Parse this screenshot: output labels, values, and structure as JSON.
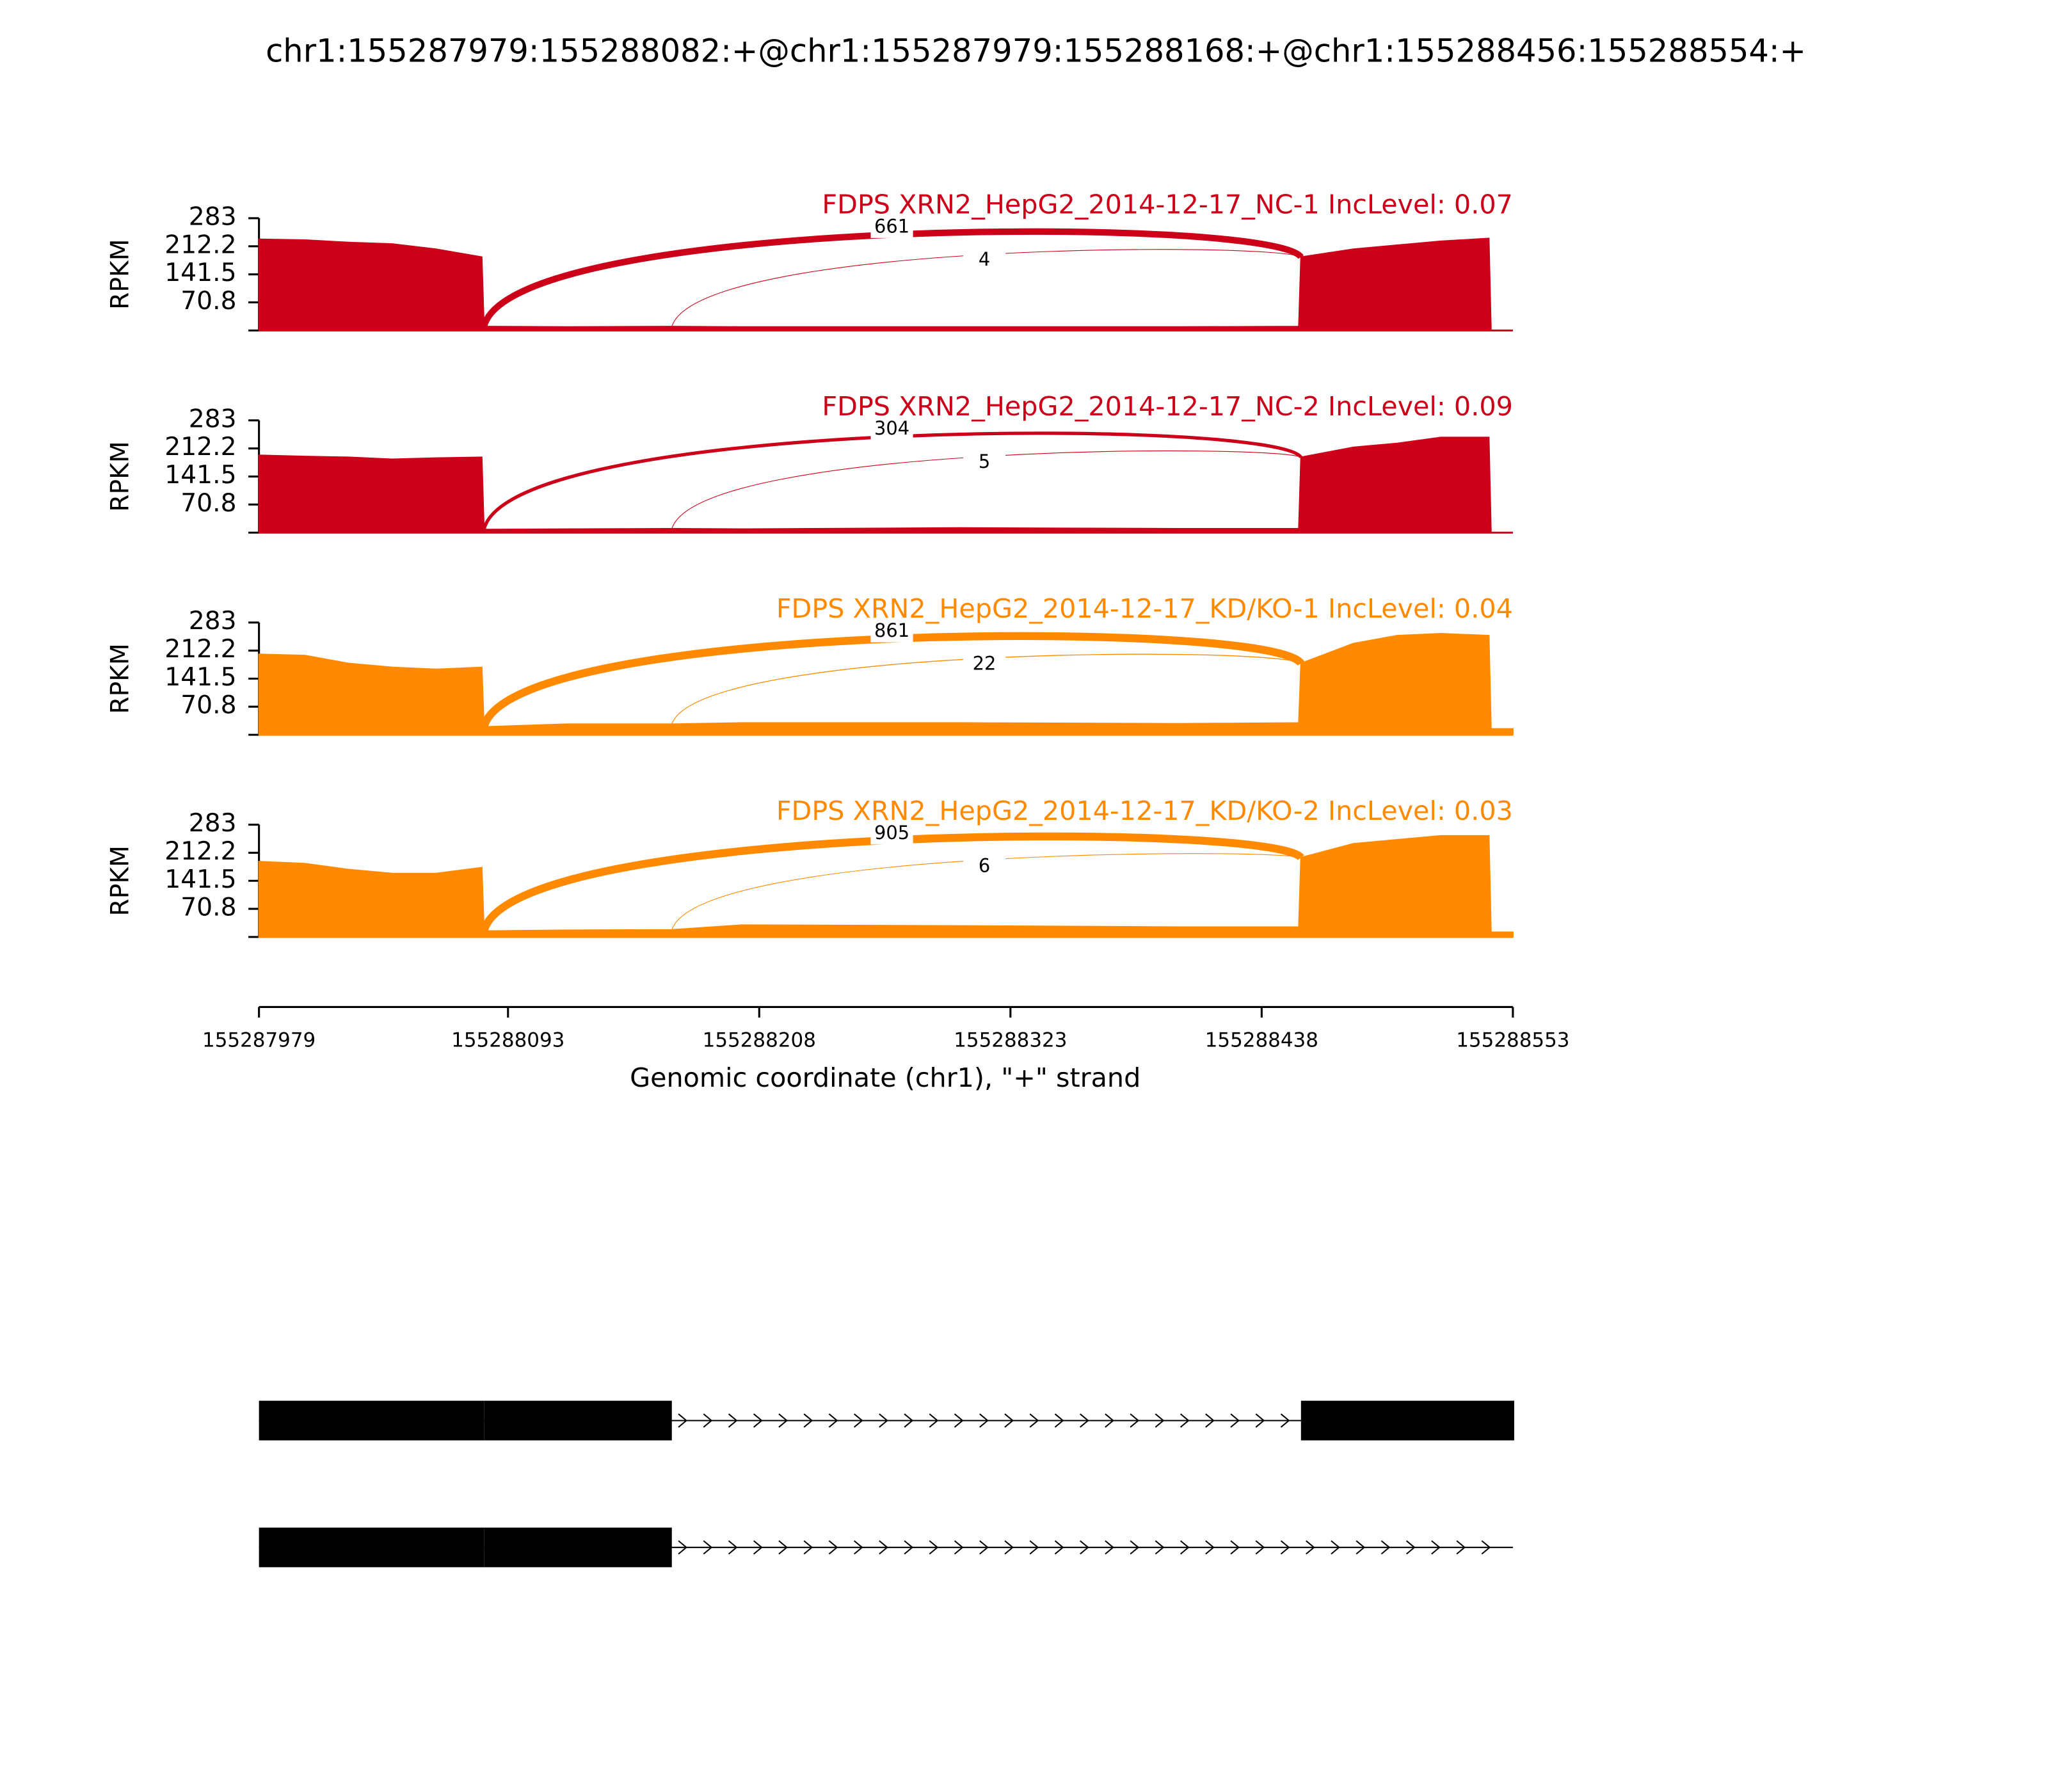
{
  "title": "chr1:155287979:155288082:+@chr1:155287979:155288168:+@chr1:155288456:155288554:+",
  "x_axis": {
    "xlabel": "Genomic coordinate (chr1), \"+\" strand",
    "xlim": [
      155287979,
      155288553
    ],
    "xticks": [
      155287979,
      155288093,
      155288208,
      155288323,
      155288438,
      155288553
    ]
  },
  "chart_data": [
    {
      "type": "sashimi",
      "title": "FDPS XRN2_HepG2_2014-12-17_NC-1 IncLevel: 0.07",
      "ylabel": "RPKM",
      "color": "#cc0018",
      "ylim": [
        0,
        283
      ],
      "yticks": [
        70.8,
        141.5,
        212.2,
        283
      ],
      "x": [
        155287979,
        155288000,
        155288020,
        155288040,
        155288060,
        155288081,
        155288082,
        155288120,
        155288168,
        155288200,
        155288300,
        155288400,
        155288455,
        155288456,
        155288480,
        155288500,
        155288520,
        155288542,
        155288543,
        155288553
      ],
      "values": [
        230,
        228,
        222,
        218,
        205,
        185,
        10,
        9,
        10,
        9,
        9,
        9,
        10,
        185,
        205,
        215,
        225,
        232,
        0,
        0
      ],
      "junctions": [
        {
          "start": 155288082,
          "end": 155288456,
          "count": 661
        },
        {
          "start": 155288168,
          "end": 155288456,
          "count": 4
        }
      ]
    },
    {
      "type": "sashimi",
      "title": "FDPS XRN2_HepG2_2014-12-17_NC-2 IncLevel: 0.09",
      "ylabel": "RPKM",
      "color": "#cc0018",
      "ylim": [
        0,
        283
      ],
      "yticks": [
        70.8,
        141.5,
        212.2,
        283
      ],
      "x": [
        155287979,
        155288000,
        155288020,
        155288040,
        155288060,
        155288081,
        155288082,
        155288120,
        155288168,
        155288200,
        155288300,
        155288400,
        155288455,
        155288456,
        155288480,
        155288500,
        155288520,
        155288542,
        155288543,
        155288553
      ],
      "values": [
        195,
        192,
        190,
        185,
        188,
        190,
        8,
        9,
        10,
        9,
        12,
        10,
        10,
        190,
        215,
        225,
        240,
        240,
        0,
        0
      ],
      "junctions": [
        {
          "start": 155288082,
          "end": 155288456,
          "count": 304
        },
        {
          "start": 155288168,
          "end": 155288456,
          "count": 5
        }
      ]
    },
    {
      "type": "sashimi",
      "title": "FDPS XRN2_HepG2_2014-12-17_KD/KO-1 IncLevel: 0.04",
      "ylabel": "RPKM",
      "color": "#ff8a00",
      "ylim": [
        0,
        283
      ],
      "yticks": [
        70.8,
        141.5,
        212.2,
        283
      ],
      "x": [
        155287979,
        155288000,
        155288020,
        155288040,
        155288060,
        155288081,
        155288082,
        155288120,
        155288168,
        155288200,
        155288300,
        155288400,
        155288455,
        155288456,
        155288480,
        155288500,
        155288520,
        155288542,
        155288543,
        155288553
      ],
      "values": [
        203,
        200,
        180,
        170,
        165,
        170,
        20,
        27,
        27,
        30,
        30,
        28,
        30,
        180,
        230,
        250,
        255,
        250,
        15,
        15
      ],
      "junctions": [
        {
          "start": 155288082,
          "end": 155288456,
          "count": 861
        },
        {
          "start": 155288168,
          "end": 155288456,
          "count": 22
        }
      ]
    },
    {
      "type": "sashimi",
      "title": "FDPS XRN2_HepG2_2014-12-17_KD/KO-2 IncLevel: 0.03",
      "ylabel": "RPKM",
      "color": "#ff8a00",
      "ylim": [
        0,
        283
      ],
      "yticks": [
        70.8,
        141.5,
        212.2,
        283
      ],
      "x": [
        155287979,
        155288000,
        155288020,
        155288040,
        155288060,
        155288081,
        155288082,
        155288120,
        155288168,
        155288200,
        155288300,
        155288400,
        155288455,
        155288456,
        155288480,
        155288500,
        155288520,
        155288542,
        155288543,
        155288553
      ],
      "values": [
        190,
        185,
        170,
        160,
        160,
        175,
        15,
        17,
        18,
        30,
        28,
        25,
        25,
        200,
        235,
        245,
        255,
        255,
        12,
        12
      ],
      "junctions": [
        {
          "start": 155288082,
          "end": 155288456,
          "count": 905
        },
        {
          "start": 155288168,
          "end": 155288456,
          "count": 6
        }
      ]
    }
  ],
  "transcripts": [
    {
      "exons": [
        [
          155287979,
          155288082
        ],
        [
          155288082,
          155288168
        ],
        [
          155288456,
          155288554
        ]
      ]
    },
    {
      "exons": [
        [
          155287979,
          155288082
        ],
        [
          155288082,
          155288168
        ]
      ]
    }
  ]
}
